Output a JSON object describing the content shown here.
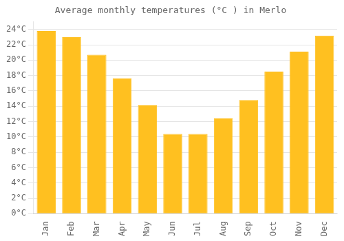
{
  "chart_data": {
    "type": "bar",
    "title": "Average monthly temperatures (°C ) in Merlo",
    "categories": [
      "Jan",
      "Feb",
      "Mar",
      "Apr",
      "May",
      "Jun",
      "Jul",
      "Aug",
      "Sep",
      "Oct",
      "Nov",
      "Dec"
    ],
    "values": [
      23.8,
      23.0,
      20.7,
      17.6,
      14.1,
      10.4,
      10.4,
      12.4,
      14.8,
      18.5,
      21.1,
      23.2
    ],
    "color": "#FFC020",
    "ylim": [
      0,
      25
    ],
    "yticks": [
      {
        "value": 0,
        "label": "0°C"
      },
      {
        "value": 2,
        "label": "2°C"
      },
      {
        "value": 4,
        "label": "4°C"
      },
      {
        "value": 6,
        "label": "6°C"
      },
      {
        "value": 8,
        "label": "8°C"
      },
      {
        "value": 10,
        "label": "10°C"
      },
      {
        "value": 12,
        "label": "12°C"
      },
      {
        "value": 14,
        "label": "14°C"
      },
      {
        "value": 16,
        "label": "16°C"
      },
      {
        "value": 18,
        "label": "18°C"
      },
      {
        "value": 20,
        "label": "20°C"
      },
      {
        "value": 22,
        "label": "22°C"
      },
      {
        "value": 24,
        "label": "24°C"
      }
    ],
    "grid": true
  }
}
